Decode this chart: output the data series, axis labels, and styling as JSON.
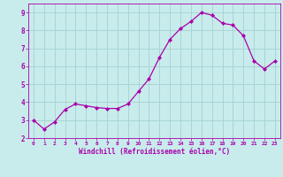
{
  "x": [
    0,
    1,
    2,
    3,
    4,
    5,
    6,
    7,
    8,
    9,
    10,
    11,
    12,
    13,
    14,
    15,
    16,
    17,
    18,
    19,
    20,
    21,
    22,
    23
  ],
  "y": [
    3.0,
    2.5,
    2.9,
    3.6,
    3.9,
    3.8,
    3.7,
    3.65,
    3.65,
    3.9,
    4.6,
    5.3,
    6.5,
    7.5,
    8.1,
    8.5,
    9.0,
    8.85,
    8.4,
    8.3,
    7.7,
    6.3,
    5.85,
    6.3
  ],
  "line_color": "#aa00aa",
  "marker": "D",
  "marker_size": 2.0,
  "bg_color": "#c8ecec",
  "grid_color": "#aad4d4",
  "xlabel": "Windchill (Refroidissement éolien,°C)",
  "xlabel_color": "#aa00aa",
  "tick_color": "#aa00aa",
  "ylim": [
    2,
    9.5
  ],
  "xlim": [
    -0.5,
    23.5
  ],
  "yticks": [
    2,
    3,
    4,
    5,
    6,
    7,
    8,
    9
  ],
  "xticks": [
    0,
    1,
    2,
    3,
    4,
    5,
    6,
    7,
    8,
    9,
    10,
    11,
    12,
    13,
    14,
    15,
    16,
    17,
    18,
    19,
    20,
    21,
    22,
    23
  ]
}
